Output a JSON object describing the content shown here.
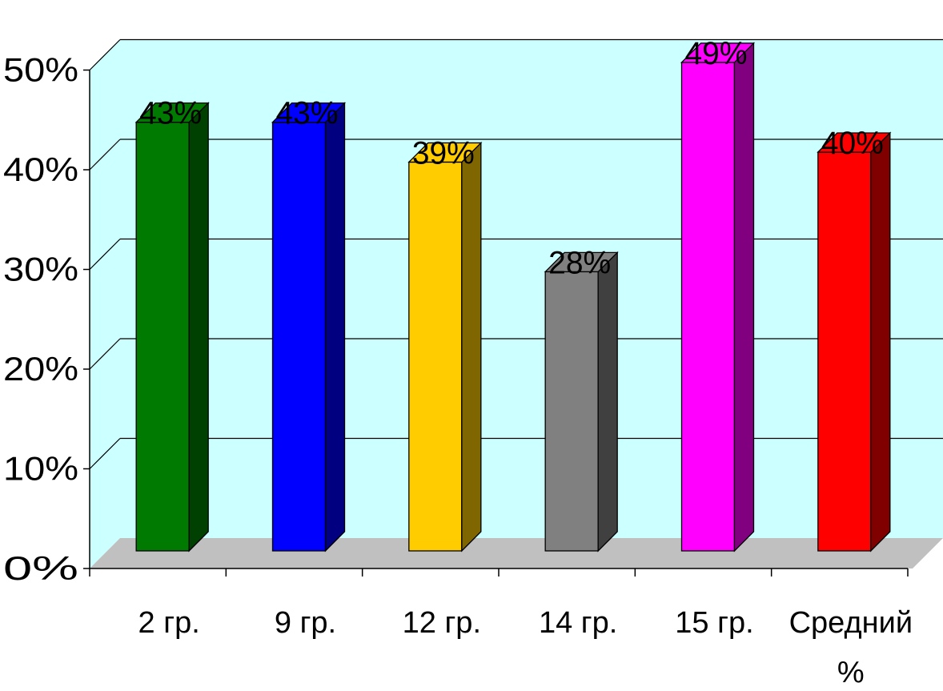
{
  "chart_data": {
    "type": "bar",
    "title": "",
    "xlabel": "",
    "ylabel": "",
    "categories": [
      "2 гр.",
      "9 гр.",
      "12 гр.",
      "14 гр.",
      "15 гр.",
      "Средний %"
    ],
    "category_lines": [
      [
        "2 гр."
      ],
      [
        "9 гр."
      ],
      [
        "12 гр."
      ],
      [
        "14 гр."
      ],
      [
        "15 гр."
      ],
      [
        "Средний",
        "%"
      ]
    ],
    "values": [
      43,
      43,
      39,
      28,
      49,
      40
    ],
    "data_labels": [
      "43%",
      "43%",
      "39%",
      "28%",
      "49%",
      "40%"
    ],
    "ylim": [
      0,
      50
    ],
    "yticks": [
      0,
      10,
      20,
      30,
      40,
      50
    ],
    "ytick_labels": [
      "0%",
      "10%",
      "20%",
      "30%",
      "40%",
      "50%"
    ],
    "grid": true,
    "legend": "none",
    "style": "3d-column",
    "colors": [
      "#007a00",
      "#0000ff",
      "#ffcc00",
      "#808080",
      "#ff00ff",
      "#ff0000"
    ],
    "side_colors": [
      "#004000",
      "#000080",
      "#806600",
      "#404040",
      "#800080",
      "#800000"
    ],
    "wall_color": "#ccffff",
    "floor_color": "#c0c0c0"
  }
}
